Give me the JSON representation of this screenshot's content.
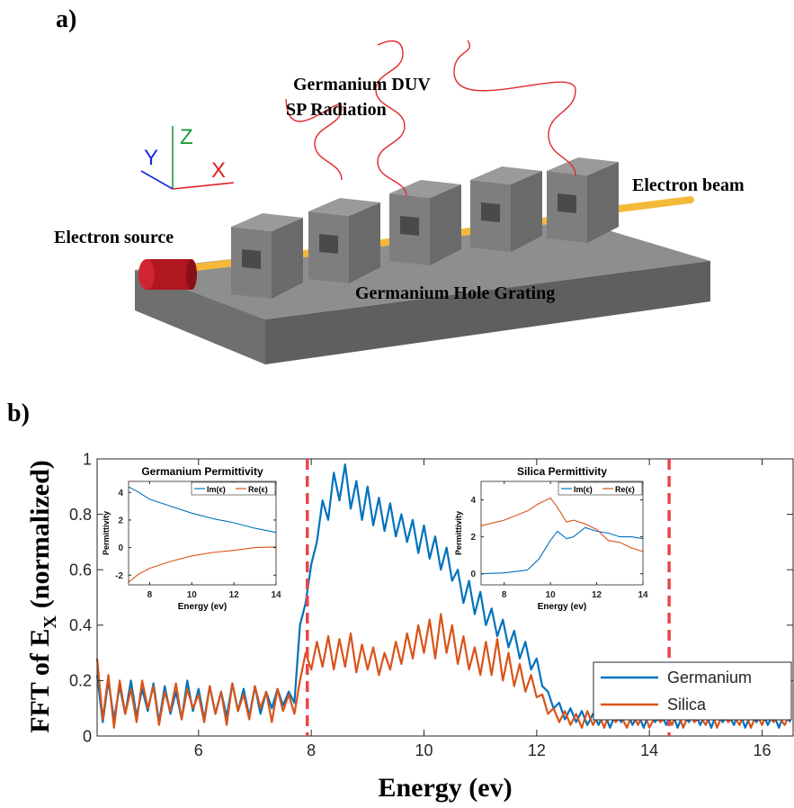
{
  "panel_a": {
    "label": "a)",
    "axes": {
      "x": "X",
      "y": "Y",
      "z": "Z"
    },
    "radiation": [
      "Germanium DUV",
      "SP Radiation"
    ],
    "electron_beam": "Electron beam",
    "electron_source": "Electron source",
    "grating": "Germanium Hole Grating"
  },
  "panel_b": {
    "label": "b)"
  },
  "chart_data": [
    {
      "type": "line",
      "ylabel": "FFT of E",
      "ylabel_subscript": "X",
      "ylabel_suffix": "(normalized)",
      "xlabel": "Energy (ev)",
      "xlim": [
        4.2,
        16.55
      ],
      "ylim": [
        0,
        1
      ],
      "xticks": [
        6,
        8,
        10,
        12,
        14,
        16
      ],
      "yticks": [
        0,
        0.2,
        0.4,
        0.6,
        0.8,
        1
      ],
      "vlines": [
        7.93,
        14.35
      ],
      "vline_color": "#e8474c",
      "legend": "lower right",
      "x": [
        4.2,
        4.3,
        4.4,
        4.5,
        4.6,
        4.7,
        4.8,
        4.9,
        5,
        5.1,
        5.2,
        5.3,
        5.4,
        5.5,
        5.6,
        5.7,
        5.8,
        5.9,
        6,
        6.1,
        6.2,
        6.3,
        6.4,
        6.5,
        6.6,
        6.7,
        6.8,
        6.9,
        7,
        7.1,
        7.2,
        7.3,
        7.4,
        7.5,
        7.6,
        7.7,
        7.8,
        7.9,
        8,
        8.1,
        8.2,
        8.3,
        8.4,
        8.5,
        8.6,
        8.7,
        8.8,
        8.9,
        9,
        9.1,
        9.2,
        9.3,
        9.4,
        9.5,
        9.6,
        9.7,
        9.8,
        9.9,
        10,
        10.1,
        10.2,
        10.3,
        10.4,
        10.5,
        10.6,
        10.7,
        10.8,
        10.9,
        11,
        11.1,
        11.2,
        11.3,
        11.4,
        11.5,
        11.6,
        11.7,
        11.8,
        11.9,
        12,
        12.1,
        12.2,
        12.3,
        12.4,
        12.5,
        12.6,
        12.7,
        12.8,
        12.9,
        13,
        13.1,
        13.2,
        13.3,
        13.4,
        13.5,
        13.6,
        13.7,
        13.8,
        13.9,
        14,
        14.1,
        14.2,
        14.3,
        14.4,
        14.5,
        14.6,
        14.7,
        14.8,
        14.9,
        15,
        15.1,
        15.2,
        15.3,
        15.4,
        15.5,
        15.6,
        15.7,
        15.8,
        15.9,
        16,
        16.1,
        16.2,
        16.3,
        16.4,
        16.5
      ],
      "series": [
        {
          "name": "Germanium",
          "color": "#0072bd",
          "values": [
            0.22,
            0.05,
            0.2,
            0.06,
            0.18,
            0.08,
            0.2,
            0.07,
            0.17,
            0.09,
            0.19,
            0.05,
            0.18,
            0.08,
            0.16,
            0.06,
            0.2,
            0.09,
            0.17,
            0.06,
            0.18,
            0.08,
            0.16,
            0.07,
            0.19,
            0.09,
            0.17,
            0.07,
            0.18,
            0.08,
            0.16,
            0.1,
            0.17,
            0.11,
            0.16,
            0.12,
            0.4,
            0.48,
            0.62,
            0.7,
            0.85,
            0.78,
            0.95,
            0.85,
            0.98,
            0.82,
            0.92,
            0.78,
            0.9,
            0.76,
            0.86,
            0.74,
            0.84,
            0.72,
            0.8,
            0.7,
            0.78,
            0.66,
            0.76,
            0.64,
            0.72,
            0.6,
            0.68,
            0.56,
            0.6,
            0.48,
            0.56,
            0.44,
            0.52,
            0.4,
            0.46,
            0.36,
            0.42,
            0.32,
            0.38,
            0.28,
            0.34,
            0.24,
            0.28,
            0.18,
            0.16,
            0.1,
            0.12,
            0.06,
            0.1,
            0.05,
            0.09,
            0.04,
            0.08,
            0.04,
            0.09,
            0.03,
            0.08,
            0.05,
            0.09,
            0.04,
            0.08,
            0.03,
            0.09,
            0.05,
            0.08,
            0.04,
            0.09,
            0.03,
            0.08,
            0.05,
            0.09,
            0.04,
            0.08,
            0.03,
            0.09,
            0.05,
            0.08,
            0.04,
            0.09,
            0.03,
            0.08,
            0.05,
            0.09,
            0.04,
            0.08,
            0.03,
            0.09,
            0.05
          ]
        },
        {
          "name": "Silica",
          "color": "#d95319",
          "values": [
            0.28,
            0.06,
            0.22,
            0.03,
            0.2,
            0.08,
            0.17,
            0.05,
            0.2,
            0.1,
            0.18,
            0.04,
            0.16,
            0.09,
            0.19,
            0.06,
            0.17,
            0.1,
            0.15,
            0.05,
            0.18,
            0.08,
            0.16,
            0.04,
            0.19,
            0.09,
            0.15,
            0.06,
            0.18,
            0.1,
            0.16,
            0.05,
            0.17,
            0.09,
            0.15,
            0.08,
            0.2,
            0.3,
            0.24,
            0.34,
            0.25,
            0.36,
            0.24,
            0.35,
            0.25,
            0.37,
            0.23,
            0.33,
            0.24,
            0.32,
            0.22,
            0.3,
            0.24,
            0.34,
            0.26,
            0.37,
            0.28,
            0.4,
            0.3,
            0.42,
            0.28,
            0.44,
            0.3,
            0.4,
            0.26,
            0.36,
            0.24,
            0.32,
            0.22,
            0.34,
            0.22,
            0.35,
            0.2,
            0.3,
            0.18,
            0.26,
            0.16,
            0.22,
            0.14,
            0.15,
            0.08,
            0.1,
            0.05,
            0.09,
            0.04,
            0.08,
            0.03,
            0.09,
            0.04,
            0.08,
            0.03,
            0.09,
            0.05,
            0.07,
            0.03,
            0.08,
            0.04,
            0.09,
            0.03,
            0.07,
            0.05,
            0.08,
            0.04,
            0.09,
            0.03,
            0.08,
            0.05,
            0.07,
            0.04,
            0.09,
            0.03,
            0.08,
            0.05,
            0.07,
            0.04,
            0.09,
            0.03,
            0.08,
            0.04,
            0.09,
            0.05,
            0.07,
            0.04,
            0.08
          ]
        }
      ]
    },
    {
      "type": "line",
      "title": "Germanium Permittivity",
      "xlabel": "Energy (ev)",
      "ylabel": "Permittivity",
      "xlim": [
        7,
        14
      ],
      "ylim": [
        -2.7,
        4.8
      ],
      "xticks": [
        8,
        10,
        12,
        14
      ],
      "yticks": [
        -2,
        0,
        2,
        4
      ],
      "legend": "upper right",
      "x": [
        7,
        7.5,
        8,
        9,
        10,
        11,
        12,
        13,
        14
      ],
      "series": [
        {
          "name": "Im(ϵ)",
          "color": "#0072bd",
          "values": [
            4.4,
            4.0,
            3.5,
            3.0,
            2.5,
            2.1,
            1.8,
            1.4,
            1.1
          ]
        },
        {
          "name": "Re(ϵ)",
          "color": "#d95319",
          "values": [
            -2.5,
            -1.9,
            -1.5,
            -1.0,
            -0.6,
            -0.35,
            -0.2,
            0,
            0.05
          ]
        }
      ]
    },
    {
      "type": "line",
      "title": "Silica Permittivity",
      "xlabel": "Energy (ev)",
      "ylabel": "Permittivity",
      "xlim": [
        7,
        14
      ],
      "ylim": [
        -0.6,
        5
      ],
      "xticks": [
        8,
        10,
        12,
        14
      ],
      "yticks": [
        0,
        2,
        4
      ],
      "legend": "upper right",
      "x": [
        7,
        8,
        9,
        9.5,
        10,
        10.3,
        10.7,
        11,
        11.5,
        12,
        12.5,
        13,
        13.5,
        14
      ],
      "series": [
        {
          "name": "Im(ϵ)",
          "color": "#0072bd",
          "values": [
            0,
            0.05,
            0.2,
            0.8,
            1.8,
            2.3,
            1.9,
            2.0,
            2.5,
            2.3,
            2.2,
            2.0,
            2.0,
            1.9
          ]
        },
        {
          "name": "Re(ϵ)",
          "color": "#d95319",
          "values": [
            2.6,
            2.9,
            3.4,
            3.8,
            4.1,
            3.6,
            2.8,
            2.9,
            2.7,
            2.4,
            1.8,
            1.7,
            1.4,
            1.2
          ]
        }
      ]
    }
  ]
}
